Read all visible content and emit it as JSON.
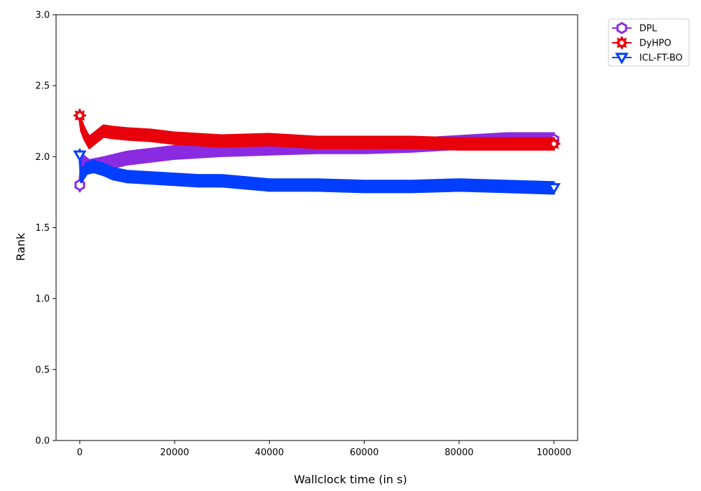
{
  "chart_data": {
    "type": "line",
    "title": "",
    "xlabel": "Wallclock time (in s)",
    "ylabel": "Rank",
    "xlim": [
      -5000,
      105000
    ],
    "ylim": [
      0.0,
      3.0
    ],
    "xticks": [
      0,
      20000,
      40000,
      60000,
      80000,
      100000
    ],
    "xtick_labels": [
      "0",
      "20000",
      "40000",
      "60000",
      "80000",
      "100000"
    ],
    "yticks": [
      0.0,
      0.5,
      1.0,
      1.5,
      2.0,
      2.5,
      3.0
    ],
    "ytick_labels": [
      "0.0",
      "0.5",
      "1.0",
      "1.5",
      "2.0",
      "2.5",
      "3.0"
    ],
    "grid": false,
    "legend_position": "outside-top-right",
    "series": [
      {
        "name": "DPL",
        "color": "#8a2be2",
        "marker": "hexagon",
        "x": [
          0,
          500,
          2000,
          5000,
          10000,
          15000,
          20000,
          25000,
          30000,
          40000,
          50000,
          60000,
          70000,
          80000,
          90000,
          100000
        ],
        "y": [
          1.8,
          1.97,
          1.93,
          1.95,
          1.99,
          2.01,
          2.03,
          2.04,
          2.05,
          2.06,
          2.07,
          2.07,
          2.08,
          2.1,
          2.12,
          2.12
        ],
        "band": 0.045
      },
      {
        "name": "DyHPO",
        "color": "#e8000b",
        "marker": "flower",
        "x": [
          0,
          300,
          1000,
          2000,
          3500,
          5000,
          7000,
          10000,
          15000,
          20000,
          25000,
          30000,
          40000,
          50000,
          60000,
          70000,
          80000,
          90000,
          100000
        ],
        "y": [
          2.29,
          2.22,
          2.16,
          2.1,
          2.14,
          2.18,
          2.17,
          2.16,
          2.15,
          2.13,
          2.12,
          2.11,
          2.12,
          2.1,
          2.1,
          2.1,
          2.09,
          2.09,
          2.09
        ],
        "band": 0.04
      },
      {
        "name": "ICL-FT-BO",
        "color": "#023eff",
        "marker": "triangle-down",
        "x": [
          0,
          300,
          1500,
          3000,
          5000,
          7000,
          10000,
          15000,
          20000,
          25000,
          30000,
          40000,
          50000,
          60000,
          70000,
          80000,
          90000,
          100000
        ],
        "y": [
          2.01,
          1.86,
          1.92,
          1.93,
          1.91,
          1.88,
          1.86,
          1.85,
          1.84,
          1.83,
          1.83,
          1.8,
          1.8,
          1.79,
          1.79,
          1.8,
          1.79,
          1.78
        ],
        "band": 0.04
      }
    ]
  }
}
